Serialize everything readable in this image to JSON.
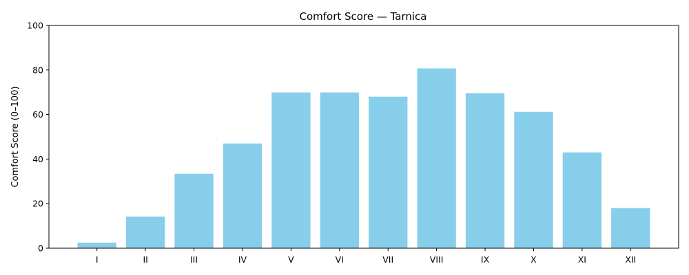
{
  "chart_data": {
    "type": "bar",
    "title": "Comfort Score — Tarnica",
    "xlabel": "",
    "ylabel": "Comfort Score (0–100)",
    "categories": [
      "I",
      "II",
      "III",
      "IV",
      "V",
      "VI",
      "VII",
      "VIII",
      "IX",
      "X",
      "XI",
      "XII"
    ],
    "values": [
      2.5,
      14.2,
      33.4,
      47.0,
      69.9,
      69.9,
      68.0,
      80.7,
      69.6,
      61.2,
      43.0,
      18.0
    ],
    "ylim": [
      0,
      100
    ],
    "yticks": [
      0,
      20,
      40,
      60,
      80,
      100
    ],
    "bar_color": "#87ceeb",
    "grid": false,
    "legend": "none"
  }
}
